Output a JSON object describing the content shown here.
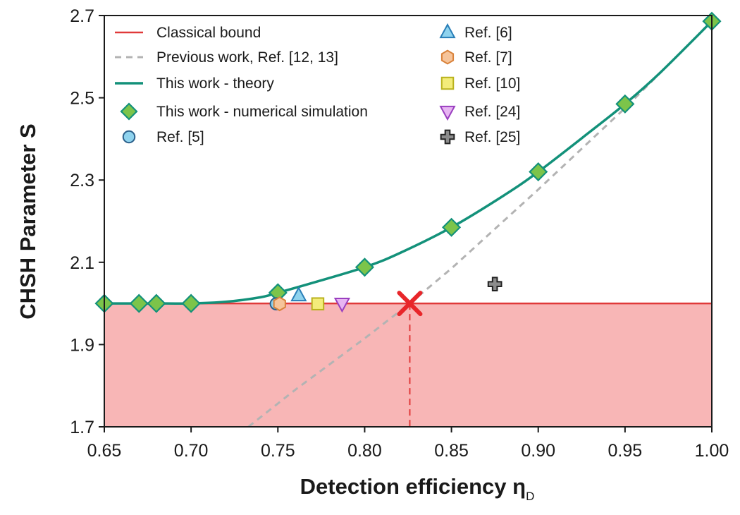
{
  "chart_data": {
    "type": "line",
    "xlabel": "Detection efficiency",
    "xlabel_symbol": "η",
    "xlabel_subscript": "D",
    "ylabel": "CHSH Parameter S",
    "xlim": [
      0.65,
      1.0
    ],
    "ylim": [
      1.7,
      2.7
    ],
    "xticks": [
      "0.65",
      "0.70",
      "0.75",
      "0.80",
      "0.85",
      "0.90",
      "0.95",
      "1.00"
    ],
    "yticks": [
      "1.7",
      "1.9",
      "2.1",
      "2.3",
      "2.5",
      "2.7"
    ],
    "legend_placement": "top-left",
    "classical_bound": 2.0,
    "threshold_marker": {
      "x": 0.826,
      "y": 2.0
    },
    "series": [
      {
        "name": "Classical bound",
        "kind": "hline",
        "color": "#e03a3a",
        "value": 2.0
      },
      {
        "name": "Previous work, Ref. [12, 13]",
        "kind": "dashed",
        "color": "#b3b3b3",
        "x": [
          0.733,
          0.76,
          0.8,
          0.826,
          0.85,
          0.9,
          0.95,
          1.0
        ],
        "y": [
          1.7,
          1.79,
          1.915,
          2.0,
          2.085,
          2.277,
          2.475,
          2.686
        ]
      },
      {
        "name": "This work - theory",
        "kind": "line",
        "color": "#13917a",
        "x": [
          0.65,
          0.67,
          0.68,
          0.7,
          0.72,
          0.74,
          0.75,
          0.77,
          0.8,
          0.82,
          0.85,
          0.88,
          0.9,
          0.93,
          0.95,
          0.97,
          1.0
        ],
        "y": [
          2.0,
          2.0,
          2.0,
          2.0,
          2.004,
          2.015,
          2.026,
          2.05,
          2.088,
          2.122,
          2.185,
          2.262,
          2.32,
          2.418,
          2.485,
          2.56,
          2.686
        ]
      },
      {
        "name": "This work - numerical simulation",
        "kind": "marker",
        "marker": "diamond",
        "color": "#7cc44a",
        "edge": "#13917a",
        "x": [
          0.65,
          0.67,
          0.68,
          0.7,
          0.75,
          0.8,
          0.85,
          0.9,
          0.95,
          1.0
        ],
        "y": [
          2.0,
          2.0,
          2.0,
          2.0,
          2.026,
          2.088,
          2.185,
          2.32,
          2.485,
          2.686
        ]
      },
      {
        "name": "Ref. [5]",
        "kind": "marker",
        "marker": "circle",
        "color": "#8fd3ee",
        "edge": "#2a5f8a",
        "x": [
          0.749
        ],
        "y": [
          1.999
        ]
      },
      {
        "name": "Ref. [6]",
        "kind": "marker",
        "marker": "triangle-up",
        "color": "#8fd3ee",
        "edge": "#2a7fb8",
        "x": [
          0.762
        ],
        "y": [
          2.019
        ]
      },
      {
        "name": "Ref. [7]",
        "kind": "marker",
        "marker": "hexagon",
        "color": "#f6c49a",
        "edge": "#d9823a",
        "x": [
          0.751
        ],
        "y": [
          1.999
        ]
      },
      {
        "name": "Ref. [10]",
        "kind": "marker",
        "marker": "square",
        "color": "#f3ec7a",
        "edge": "#b9b21d",
        "x": [
          0.773
        ],
        "y": [
          1.999
        ]
      },
      {
        "name": "Ref. [24]",
        "kind": "marker",
        "marker": "triangle-down",
        "color": "#e7b5f2",
        "edge": "#9a3fc0",
        "x": [
          0.787
        ],
        "y": [
          2.0
        ]
      },
      {
        "name": "Ref. [25]",
        "kind": "marker",
        "marker": "plus",
        "color": "#8c8c8c",
        "edge": "#222222",
        "x": [
          0.875
        ],
        "y": [
          2.047
        ]
      }
    ]
  }
}
